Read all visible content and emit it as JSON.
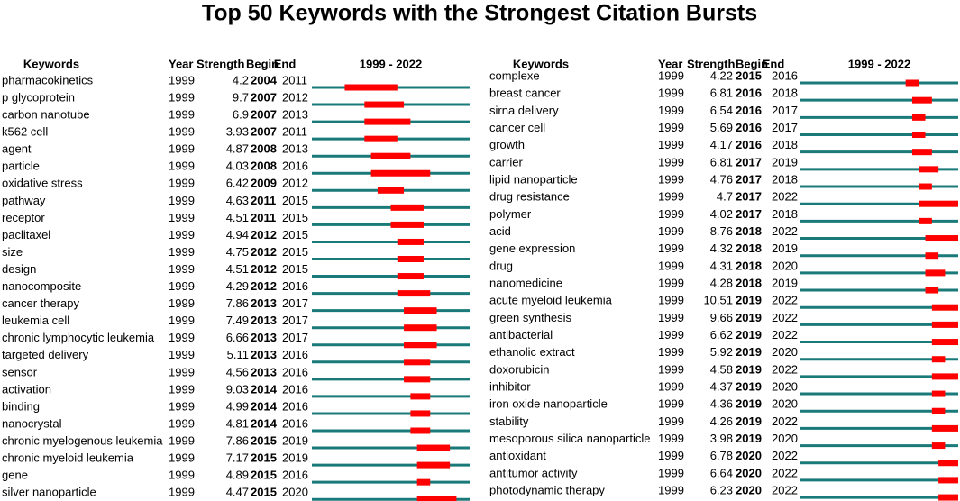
{
  "title": "Top 50 Keywords with the Strongest Citation Bursts",
  "panels": [
    {
      "headers": [
        "Keywords",
        "Year",
        "Strength",
        "Begin",
        "End",
        "1999 - 2022"
      ],
      "rows": [
        [
          "pharmacokinetics",
          1999,
          4.2,
          2004,
          2011
        ],
        [
          "p glycoprotein",
          1999,
          9.7,
          2007,
          2012
        ],
        [
          "carbon nanotube",
          1999,
          6.9,
          2007,
          2013
        ],
        [
          "k562 cell",
          1999,
          3.93,
          2007,
          2011
        ],
        [
          "agent",
          1999,
          4.87,
          2008,
          2013
        ],
        [
          "particle",
          1999,
          4.03,
          2008,
          2016
        ],
        [
          "oxidative stress",
          1999,
          6.42,
          2009,
          2012
        ],
        [
          "pathway",
          1999,
          4.63,
          2011,
          2015
        ],
        [
          "receptor",
          1999,
          4.51,
          2011,
          2015
        ],
        [
          "paclitaxel",
          1999,
          4.94,
          2012,
          2015
        ],
        [
          "size",
          1999,
          4.75,
          2012,
          2015
        ],
        [
          "design",
          1999,
          4.51,
          2012,
          2015
        ],
        [
          "nanocomposite",
          1999,
          4.29,
          2012,
          2016
        ],
        [
          "cancer therapy",
          1999,
          7.86,
          2013,
          2017
        ],
        [
          "leukemia cell",
          1999,
          7.49,
          2013,
          2017
        ],
        [
          "chronic lymphocytic leukemia",
          1999,
          6.66,
          2013,
          2017
        ],
        [
          "targeted delivery",
          1999,
          5.11,
          2013,
          2016
        ],
        [
          "sensor",
          1999,
          4.56,
          2013,
          2016
        ],
        [
          "activation",
          1999,
          9.03,
          2014,
          2016
        ],
        [
          "binding",
          1999,
          4.99,
          2014,
          2016
        ],
        [
          "nanocrystal",
          1999,
          4.81,
          2014,
          2016
        ],
        [
          "chronic myelogenous leukemia",
          1999,
          7.86,
          2015,
          2019
        ],
        [
          "chronic myeloid leukemia",
          1999,
          7.17,
          2015,
          2019
        ],
        [
          "gene",
          1999,
          4.89,
          2015,
          2016
        ],
        [
          "silver nanoparticle",
          1999,
          4.47,
          2015,
          2020
        ]
      ]
    },
    {
      "headers": [
        "Keywords",
        "Year",
        "Strength",
        "Begin",
        "End",
        "1999 - 2022"
      ],
      "rows": [
        [
          "complexe",
          1999,
          4.22,
          2015,
          2016
        ],
        [
          "breast cancer",
          1999,
          6.81,
          2016,
          2018
        ],
        [
          "sirna delivery",
          1999,
          6.54,
          2016,
          2017
        ],
        [
          "cancer cell",
          1999,
          5.69,
          2016,
          2017
        ],
        [
          "growth",
          1999,
          4.17,
          2016,
          2018
        ],
        [
          "carrier",
          1999,
          6.81,
          2017,
          2019
        ],
        [
          "lipid nanoparticle",
          1999,
          4.76,
          2017,
          2018
        ],
        [
          "drug resistance",
          1999,
          4.7,
          2017,
          2022
        ],
        [
          "polymer",
          1999,
          4.02,
          2017,
          2018
        ],
        [
          "acid",
          1999,
          8.76,
          2018,
          2022
        ],
        [
          "gene expression",
          1999,
          4.32,
          2018,
          2019
        ],
        [
          "drug",
          1999,
          4.31,
          2018,
          2020
        ],
        [
          "nanomedicine",
          1999,
          4.28,
          2018,
          2019
        ],
        [
          "acute myeloid leukemia",
          1999,
          10.51,
          2019,
          2022
        ],
        [
          "green synthesis",
          1999,
          9.66,
          2019,
          2022
        ],
        [
          "antibacterial",
          1999,
          6.62,
          2019,
          2022
        ],
        [
          "ethanolic extract",
          1999,
          5.92,
          2019,
          2020
        ],
        [
          "doxorubicin",
          1999,
          4.58,
          2019,
          2022
        ],
        [
          "inhibitor",
          1999,
          4.37,
          2019,
          2020
        ],
        [
          "iron oxide nanoparticle",
          1999,
          4.36,
          2019,
          2020
        ],
        [
          "stability",
          1999,
          4.26,
          2019,
          2022
        ],
        [
          "mesoporous silica nanoparticle",
          1999,
          3.98,
          2019,
          2020
        ],
        [
          "antioxidant",
          1999,
          6.78,
          2020,
          2022
        ],
        [
          "antitumor activity",
          1999,
          6.64,
          2020,
          2022
        ],
        [
          "photodynamic therapy",
          1999,
          6.23,
          2020,
          2022
        ]
      ]
    }
  ]
}
